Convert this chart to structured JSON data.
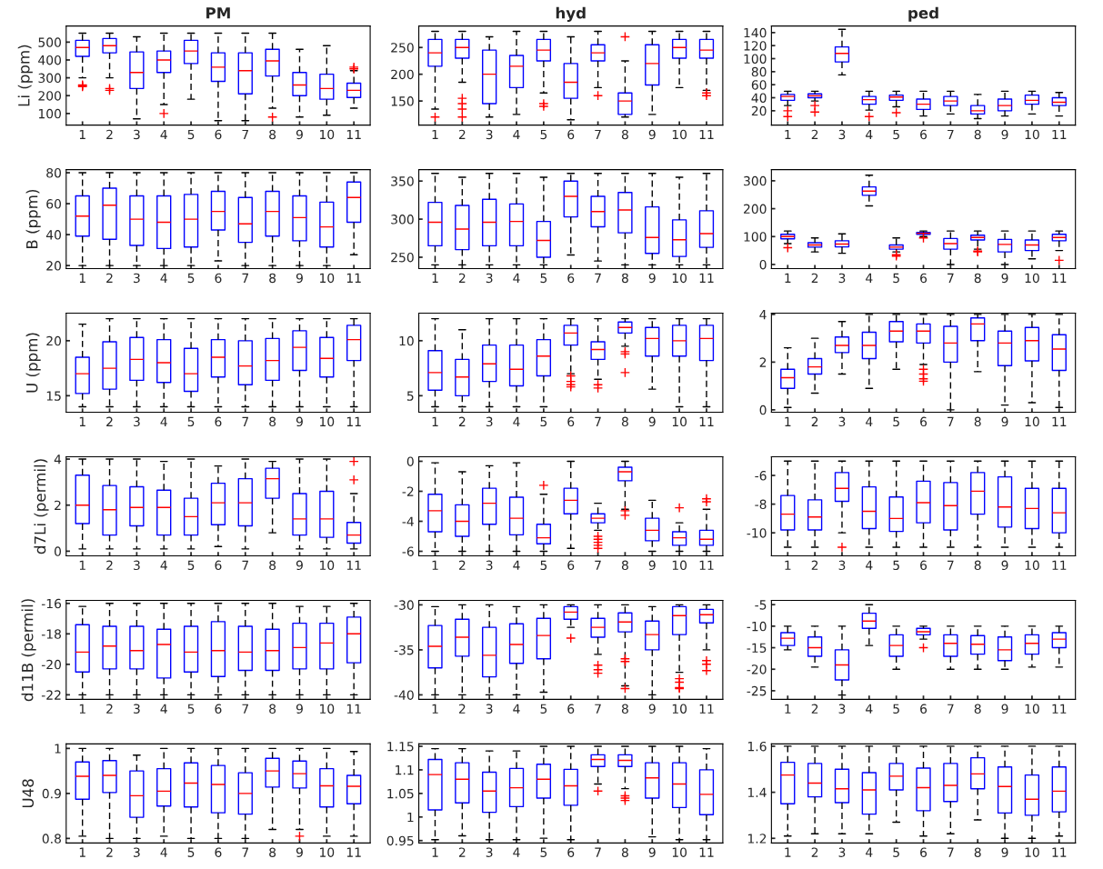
{
  "chart_data": [
    {
      "type": "box",
      "title": "PM",
      "ylabel": "Li (ppm)",
      "color": "#0000ff",
      "marker": "cross",
      "line_style": "dashed",
      "categories": [
        "1",
        "2",
        "3",
        "4",
        "5",
        "6",
        "7",
        "8",
        "9",
        "10",
        "11"
      ],
      "ylim": [
        35,
        590
      ],
      "yticks": [
        100,
        200,
        300,
        400,
        500
      ],
      "boxes": [
        {
          "low": 300,
          "q1": 420,
          "median": 470,
          "q3": 510,
          "high": 550,
          "outliers": [
            255,
            250,
            260
          ]
        },
        {
          "low": 300,
          "q1": 440,
          "median": 480,
          "q3": 520,
          "high": 550,
          "outliers": [
            230,
            240
          ]
        },
        {
          "low": 70,
          "q1": 240,
          "median": 330,
          "q3": 445,
          "high": 530
        },
        {
          "low": 150,
          "q1": 330,
          "median": 400,
          "q3": 450,
          "high": 550,
          "outliers": [
            100
          ]
        },
        {
          "low": 180,
          "q1": 380,
          "median": 450,
          "q3": 510,
          "high": 550
        },
        {
          "low": 60,
          "q1": 280,
          "median": 360,
          "q3": 440,
          "high": 550
        },
        {
          "low": 60,
          "q1": 210,
          "median": 340,
          "q3": 440,
          "high": 550
        },
        {
          "low": 130,
          "q1": 310,
          "median": 395,
          "q3": 460,
          "high": 550,
          "outliers": [
            80
          ]
        },
        {
          "low": 80,
          "q1": 200,
          "median": 260,
          "q3": 330,
          "high": 460
        },
        {
          "low": 90,
          "q1": 180,
          "median": 240,
          "q3": 320,
          "high": 480
        },
        {
          "low": 130,
          "q1": 190,
          "median": 230,
          "q3": 270,
          "high": 340,
          "outliers": [
            360,
            350
          ]
        }
      ]
    },
    {
      "type": "box",
      "title": "hyd",
      "color": "#0000ff",
      "marker": "cross",
      "line_style": "dashed",
      "categories": [
        "1",
        "2",
        "3",
        "4",
        "5",
        "6",
        "7",
        "8",
        "9",
        "10",
        "11"
      ],
      "ylim": [
        105,
        290
      ],
      "yticks": [
        150,
        200,
        250
      ],
      "boxes": [
        {
          "low": 135,
          "q1": 215,
          "median": 240,
          "q3": 265,
          "high": 280,
          "outliers": [
            120
          ]
        },
        {
          "low": 185,
          "q1": 230,
          "median": 250,
          "q3": 265,
          "high": 280,
          "outliers": [
            155,
            145,
            135,
            120
          ]
        },
        {
          "low": 120,
          "q1": 145,
          "median": 200,
          "q3": 245,
          "high": 270
        },
        {
          "low": 125,
          "q1": 175,
          "median": 215,
          "q3": 235,
          "high": 280
        },
        {
          "low": 165,
          "q1": 225,
          "median": 245,
          "q3": 265,
          "high": 280,
          "outliers": [
            145,
            140
          ]
        },
        {
          "low": 115,
          "q1": 155,
          "median": 185,
          "q3": 220,
          "high": 270
        },
        {
          "low": 175,
          "q1": 225,
          "median": 240,
          "q3": 255,
          "high": 280,
          "outliers": [
            160
          ]
        },
        {
          "low": 120,
          "q1": 125,
          "median": 150,
          "q3": 165,
          "high": 225,
          "outliers": [
            270
          ]
        },
        {
          "low": 125,
          "q1": 180,
          "median": 220,
          "q3": 255,
          "high": 280
        },
        {
          "low": 175,
          "q1": 230,
          "median": 250,
          "q3": 265,
          "high": 280
        },
        {
          "low": 170,
          "q1": 230,
          "median": 245,
          "q3": 265,
          "high": 280,
          "outliers": [
            165,
            160
          ]
        }
      ]
    },
    {
      "type": "box",
      "title": "ped",
      "color": "#0000ff",
      "marker": "cross",
      "line_style": "dashed",
      "categories": [
        "1",
        "2",
        "3",
        "4",
        "5",
        "6",
        "7",
        "8",
        "9",
        "10",
        "11"
      ],
      "ylim": [
        -2,
        150
      ],
      "yticks": [
        20,
        40,
        60,
        80,
        100,
        120,
        140
      ],
      "boxes": [
        {
          "low": 28,
          "q1": 36,
          "median": 42,
          "q3": 45,
          "high": 50,
          "outliers": [
            20,
            11
          ]
        },
        {
          "low": 35,
          "q1": 40,
          "median": 43,
          "q3": 46,
          "high": 50,
          "outliers": [
            28,
            18
          ]
        },
        {
          "low": 75,
          "q1": 95,
          "median": 108,
          "q3": 118,
          "high": 145
        },
        {
          "low": 21,
          "q1": 30,
          "median": 37,
          "q3": 42,
          "high": 50,
          "outliers": [
            11
          ]
        },
        {
          "low": 26,
          "q1": 36,
          "median": 41,
          "q3": 44,
          "high": 50,
          "outliers": [
            17
          ]
        },
        {
          "low": 12,
          "q1": 22,
          "median": 30,
          "q3": 38,
          "high": 50
        },
        {
          "low": 15,
          "q1": 28,
          "median": 35,
          "q3": 42,
          "high": 50
        },
        {
          "low": 8,
          "q1": 15,
          "median": 20,
          "q3": 28,
          "high": 45
        },
        {
          "low": 12,
          "q1": 20,
          "median": 28,
          "q3": 38,
          "high": 50
        },
        {
          "low": 15,
          "q1": 30,
          "median": 36,
          "q3": 44,
          "high": 50
        },
        {
          "low": 12,
          "q1": 28,
          "median": 33,
          "q3": 40,
          "high": 48
        }
      ]
    },
    {
      "type": "box",
      "ylabel": "B (ppm)",
      "color": "#0000ff",
      "marker": "cross",
      "line_style": "dashed",
      "categories": [
        "1",
        "2",
        "3",
        "4",
        "5",
        "6",
        "7",
        "8",
        "9",
        "10",
        "11"
      ],
      "ylim": [
        18,
        82
      ],
      "yticks": [
        20,
        40,
        60,
        80
      ],
      "boxes": [
        {
          "low": 20,
          "q1": 39,
          "median": 52,
          "q3": 65,
          "high": 80
        },
        {
          "low": 20,
          "q1": 37,
          "median": 59,
          "q3": 70,
          "high": 80
        },
        {
          "low": 20,
          "q1": 33,
          "median": 50,
          "q3": 65,
          "high": 80
        },
        {
          "low": 20,
          "q1": 31,
          "median": 48,
          "q3": 65,
          "high": 80
        },
        {
          "low": 20,
          "q1": 32,
          "median": 50,
          "q3": 66,
          "high": 80
        },
        {
          "low": 23,
          "q1": 43,
          "median": 55,
          "q3": 68,
          "high": 80
        },
        {
          "low": 20,
          "q1": 35,
          "median": 47,
          "q3": 64,
          "high": 80
        },
        {
          "low": 20,
          "q1": 39,
          "median": 55,
          "q3": 68,
          "high": 80
        },
        {
          "low": 20,
          "q1": 36,
          "median": 51,
          "q3": 65,
          "high": 80
        },
        {
          "low": 20,
          "q1": 32,
          "median": 45,
          "q3": 61,
          "high": 80
        },
        {
          "low": 27,
          "q1": 48,
          "median": 64,
          "q3": 74,
          "high": 80
        }
      ]
    },
    {
      "type": "box",
      "color": "#0000ff",
      "marker": "cross",
      "line_style": "dashed",
      "categories": [
        "1",
        "2",
        "3",
        "4",
        "5",
        "6",
        "7",
        "8",
        "9",
        "10",
        "11"
      ],
      "ylim": [
        235,
        365
      ],
      "yticks": [
        250,
        300,
        350
      ],
      "boxes": [
        {
          "low": 240,
          "q1": 265,
          "median": 296,
          "q3": 322,
          "high": 360
        },
        {
          "low": 240,
          "q1": 260,
          "median": 287,
          "q3": 318,
          "high": 355
        },
        {
          "low": 240,
          "q1": 265,
          "median": 296,
          "q3": 326,
          "high": 360
        },
        {
          "low": 240,
          "q1": 265,
          "median": 297,
          "q3": 320,
          "high": 360
        },
        {
          "low": 240,
          "q1": 250,
          "median": 272,
          "q3": 297,
          "high": 355
        },
        {
          "low": 253,
          "q1": 303,
          "median": 330,
          "q3": 350,
          "high": 360
        },
        {
          "low": 245,
          "q1": 290,
          "median": 310,
          "q3": 330,
          "high": 360
        },
        {
          "low": 240,
          "q1": 282,
          "median": 312,
          "q3": 335,
          "high": 360
        },
        {
          "low": 240,
          "q1": 255,
          "median": 276,
          "q3": 316,
          "high": 360
        },
        {
          "low": 240,
          "q1": 251,
          "median": 273,
          "q3": 299,
          "high": 355
        },
        {
          "low": 240,
          "q1": 263,
          "median": 281,
          "q3": 311,
          "high": 360
        }
      ]
    },
    {
      "type": "box",
      "color": "#0000ff",
      "marker": "cross",
      "line_style": "dashed",
      "categories": [
        "1",
        "2",
        "3",
        "4",
        "5",
        "6",
        "7",
        "8",
        "9",
        "10",
        "11"
      ],
      "ylim": [
        -15,
        340
      ],
      "yticks": [
        0,
        100,
        200,
        300
      ],
      "boxes": [
        {
          "low": 75,
          "q1": 92,
          "median": 100,
          "q3": 108,
          "high": 120,
          "outliers": [
            60
          ]
        },
        {
          "low": 45,
          "q1": 62,
          "median": 70,
          "q3": 78,
          "high": 95
        },
        {
          "low": 40,
          "q1": 63,
          "median": 73,
          "q3": 85,
          "high": 110
        },
        {
          "low": 210,
          "q1": 248,
          "median": 263,
          "q3": 278,
          "high": 320
        },
        {
          "low": 45,
          "q1": 55,
          "median": 62,
          "q3": 70,
          "high": 95,
          "outliers": [
            35,
            30
          ]
        },
        {
          "low": 100,
          "q1": 108,
          "median": 112,
          "q3": 115,
          "high": 120,
          "outliers": [
            95
          ]
        },
        {
          "low": 0,
          "q1": 55,
          "median": 75,
          "q3": 93,
          "high": 120
        },
        {
          "low": 55,
          "q1": 88,
          "median": 97,
          "q3": 105,
          "high": 120,
          "outliers": [
            45,
            48
          ]
        },
        {
          "low": 0,
          "q1": 45,
          "median": 72,
          "q3": 90,
          "high": 120
        },
        {
          "low": 20,
          "q1": 50,
          "median": 70,
          "q3": 88,
          "high": 120
        },
        {
          "low": 50,
          "q1": 85,
          "median": 97,
          "q3": 108,
          "high": 120,
          "outliers": [
            15
          ]
        }
      ]
    },
    {
      "type": "box",
      "ylabel": "U (ppm)",
      "color": "#0000ff",
      "marker": "cross",
      "line_style": "dashed",
      "categories": [
        "1",
        "2",
        "3",
        "4",
        "5",
        "6",
        "7",
        "8",
        "9",
        "10",
        "11"
      ],
      "ylim": [
        13.5,
        22.5
      ],
      "yticks": [
        15,
        20
      ],
      "boxes": [
        {
          "low": 14,
          "q1": 15.2,
          "median": 17,
          "q3": 18.5,
          "high": 21.5
        },
        {
          "low": 14,
          "q1": 15.6,
          "median": 17.5,
          "q3": 19.9,
          "high": 22
        },
        {
          "low": 14,
          "q1": 16.4,
          "median": 18.3,
          "q3": 20.3,
          "high": 22
        },
        {
          "low": 14,
          "q1": 16.2,
          "median": 18,
          "q3": 20.1,
          "high": 22
        },
        {
          "low": 14,
          "q1": 15.4,
          "median": 17,
          "q3": 19.3,
          "high": 22
        },
        {
          "low": 14,
          "q1": 16.7,
          "median": 18.5,
          "q3": 20.1,
          "high": 22
        },
        {
          "low": 14,
          "q1": 16,
          "median": 17.7,
          "q3": 20,
          "high": 22
        },
        {
          "low": 14,
          "q1": 16.4,
          "median": 18.2,
          "q3": 20.2,
          "high": 22
        },
        {
          "low": 14,
          "q1": 17.3,
          "median": 19.4,
          "q3": 20.9,
          "high": 22
        },
        {
          "low": 14,
          "q1": 16.7,
          "median": 18.4,
          "q3": 20.3,
          "high": 22
        },
        {
          "low": 14,
          "q1": 18.2,
          "median": 20.1,
          "q3": 21.4,
          "high": 22
        }
      ]
    },
    {
      "type": "box",
      "color": "#0000ff",
      "marker": "cross",
      "line_style": "dashed",
      "categories": [
        "1",
        "2",
        "3",
        "4",
        "5",
        "6",
        "7",
        "8",
        "9",
        "10",
        "11"
      ],
      "ylim": [
        3.5,
        12.5
      ],
      "yticks": [
        5,
        10
      ],
      "boxes": [
        {
          "low": 4,
          "q1": 5.5,
          "median": 7.1,
          "q3": 9.1,
          "high": 12
        },
        {
          "low": 4,
          "q1": 5,
          "median": 6.7,
          "q3": 8.3,
          "high": 11
        },
        {
          "low": 4,
          "q1": 6.3,
          "median": 7.9,
          "q3": 9.6,
          "high": 12
        },
        {
          "low": 4,
          "q1": 5.9,
          "median": 7.4,
          "q3": 9.6,
          "high": 12
        },
        {
          "low": 4,
          "q1": 6.8,
          "median": 8.6,
          "q3": 10.1,
          "high": 12
        },
        {
          "low": 7,
          "q1": 9.6,
          "median": 10.7,
          "q3": 11.4,
          "high": 12,
          "outliers": [
            6.8,
            6.3,
            6,
            5.8
          ]
        },
        {
          "low": 6.5,
          "q1": 8.3,
          "median": 9.2,
          "q3": 9.9,
          "high": 12,
          "outliers": [
            6,
            5.7
          ]
        },
        {
          "low": 9.5,
          "q1": 10.7,
          "median": 11.2,
          "q3": 11.7,
          "high": 12,
          "outliers": [
            9,
            8.8,
            7.1
          ]
        },
        {
          "low": 5.6,
          "q1": 8.6,
          "median": 10.2,
          "q3": 11.2,
          "high": 12
        },
        {
          "low": 4,
          "q1": 8.6,
          "median": 10,
          "q3": 11.4,
          "high": 12
        },
        {
          "low": 4,
          "q1": 8.2,
          "median": 10.2,
          "q3": 11.4,
          "high": 12
        }
      ]
    },
    {
      "type": "box",
      "color": "#0000ff",
      "marker": "cross",
      "line_style": "dashed",
      "categories": [
        "1",
        "2",
        "3",
        "4",
        "5",
        "6",
        "7",
        "8",
        "9",
        "10",
        "11"
      ],
      "ylim": [
        -0.1,
        4.05
      ],
      "yticks": [
        0,
        2,
        4
      ],
      "boxes": [
        {
          "low": 0.1,
          "q1": 0.9,
          "median": 1.35,
          "q3": 1.7,
          "high": 2.6
        },
        {
          "low": 0.7,
          "q1": 1.5,
          "median": 1.8,
          "q3": 2.15,
          "high": 3
        },
        {
          "low": 1.5,
          "q1": 2.4,
          "median": 2.7,
          "q3": 3.05,
          "high": 3.7
        },
        {
          "low": 0.9,
          "q1": 2.15,
          "median": 2.7,
          "q3": 3.25,
          "high": 4
        },
        {
          "low": 1.7,
          "q1": 2.85,
          "median": 3.3,
          "q3": 3.7,
          "high": 4
        },
        {
          "low": 1.9,
          "q1": 2.8,
          "median": 3.3,
          "q3": 3.6,
          "high": 4,
          "outliers": [
            1.7,
            1.5,
            1.3,
            1.2
          ]
        },
        {
          "low": 0,
          "q1": 2,
          "median": 2.8,
          "q3": 3.5,
          "high": 4
        },
        {
          "low": 1.6,
          "q1": 2.9,
          "median": 3.6,
          "q3": 3.85,
          "high": 4
        },
        {
          "low": 0.2,
          "q1": 1.85,
          "median": 2.8,
          "q3": 3.3,
          "high": 4
        },
        {
          "low": 0.3,
          "q1": 2.05,
          "median": 2.9,
          "q3": 3.45,
          "high": 4
        },
        {
          "low": 0.1,
          "q1": 1.65,
          "median": 2.55,
          "q3": 3.15,
          "high": 4
        }
      ]
    },
    {
      "type": "box",
      "ylabel": "d7Li (permil)",
      "color": "#0000ff",
      "marker": "cross",
      "line_style": "dashed",
      "categories": [
        "1",
        "2",
        "3",
        "4",
        "5",
        "6",
        "7",
        "8",
        "9",
        "10",
        "11"
      ],
      "ylim": [
        -0.2,
        4.1
      ],
      "yticks": [
        0,
        2,
        4
      ],
      "boxes": [
        {
          "low": 0.1,
          "q1": 1.2,
          "median": 2,
          "q3": 3.3,
          "high": 4
        },
        {
          "low": 0.1,
          "q1": 0.7,
          "median": 1.8,
          "q3": 2.85,
          "high": 4
        },
        {
          "low": 0.1,
          "q1": 1.1,
          "median": 1.9,
          "q3": 2.8,
          "high": 4
        },
        {
          "low": 0.1,
          "q1": 0.7,
          "median": 1.9,
          "q3": 2.65,
          "high": 3.9
        },
        {
          "low": 0.1,
          "q1": 0.7,
          "median": 1.5,
          "q3": 2.3,
          "high": 4
        },
        {
          "low": 0.2,
          "q1": 1.15,
          "median": 2.1,
          "q3": 2.95,
          "high": 3.7
        },
        {
          "low": 0.1,
          "q1": 1.1,
          "median": 2.1,
          "q3": 3.15,
          "high": 4
        },
        {
          "low": 0.8,
          "q1": 2.3,
          "median": 3.15,
          "q3": 3.6,
          "high": 3.9
        },
        {
          "low": 0.1,
          "q1": 0.7,
          "median": 1.4,
          "q3": 2.5,
          "high": 4
        },
        {
          "low": 0.1,
          "q1": 0.6,
          "median": 1.4,
          "q3": 2.6,
          "high": 4
        },
        {
          "low": 0.1,
          "q1": 0.35,
          "median": 0.7,
          "q3": 1.25,
          "high": 2.5,
          "outliers": [
            3.9,
            3.1
          ]
        }
      ]
    },
    {
      "type": "box",
      "color": "#0000ff",
      "marker": "cross",
      "line_style": "dashed",
      "categories": [
        "1",
        "2",
        "3",
        "4",
        "5",
        "6",
        "7",
        "8",
        "9",
        "10",
        "11"
      ],
      "ylim": [
        -6.3,
        0.3
      ],
      "yticks": [
        -6,
        -4,
        -2,
        0
      ],
      "boxes": [
        {
          "low": -6,
          "q1": -4.7,
          "median": -3.3,
          "q3": -2.2,
          "high": -0.1
        },
        {
          "low": -6,
          "q1": -5,
          "median": -4,
          "q3": -2.9,
          "high": -0.7
        },
        {
          "low": -6,
          "q1": -4.2,
          "median": -2.8,
          "q3": -1.8,
          "high": -0.3
        },
        {
          "low": -6,
          "q1": -4.9,
          "median": -3.8,
          "q3": -2.4,
          "high": -0.1
        },
        {
          "low": -6,
          "q1": -5.5,
          "median": -5.1,
          "q3": -4.2,
          "high": -2.2,
          "outliers": [
            -1.6
          ]
        },
        {
          "low": -5.8,
          "q1": -3.5,
          "median": -2.6,
          "q3": -1.8,
          "high": 0
        },
        {
          "low": -4.6,
          "q1": -4.1,
          "median": -3.8,
          "q3": -3.5,
          "high": -2.8,
          "outliers": [
            -5,
            -5.2,
            -5.4,
            -5.6,
            -5.8
          ]
        },
        {
          "low": -3.2,
          "q1": -1.3,
          "median": -0.7,
          "q3": -0.4,
          "high": 0,
          "outliers": [
            -3.3,
            -3.6
          ]
        },
        {
          "low": -6,
          "q1": -5.3,
          "median": -4.6,
          "q3": -3.8,
          "high": -2.6
        },
        {
          "low": -6,
          "q1": -5.6,
          "median": -5.1,
          "q3": -4.7,
          "high": -4.1,
          "outliers": [
            -3.1
          ]
        },
        {
          "low": -6,
          "q1": -5.6,
          "median": -5.2,
          "q3": -4.6,
          "high": -3.2,
          "outliers": [
            -2.7,
            -2.5
          ]
        }
      ]
    },
    {
      "type": "box",
      "color": "#0000ff",
      "marker": "cross",
      "line_style": "dashed",
      "categories": [
        "1",
        "2",
        "3",
        "4",
        "5",
        "6",
        "7",
        "8",
        "9",
        "10",
        "11"
      ],
      "ylim": [
        -11.6,
        -4.7
      ],
      "yticks": [
        -10,
        -8,
        -6
      ],
      "boxes": [
        {
          "low": -11,
          "q1": -9.8,
          "median": -8.7,
          "q3": -7.4,
          "high": -5
        },
        {
          "low": -11,
          "q1": -9.8,
          "median": -8.9,
          "q3": -7.7,
          "high": -5
        },
        {
          "low": -10,
          "q1": -7.8,
          "median": -6.9,
          "q3": -5.8,
          "high": -5,
          "outliers": [
            -11
          ]
        },
        {
          "low": -11,
          "q1": -9.7,
          "median": -8.5,
          "q3": -6.8,
          "high": -5
        },
        {
          "low": -11,
          "q1": -9.9,
          "median": -9,
          "q3": -7.5,
          "high": -5
        },
        {
          "low": -11,
          "q1": -9.3,
          "median": -7.9,
          "q3": -6.4,
          "high": -5
        },
        {
          "low": -11,
          "q1": -9.8,
          "median": -8.1,
          "q3": -6.5,
          "high": -5
        },
        {
          "low": -11,
          "q1": -8.7,
          "median": -7.1,
          "q3": -5.8,
          "high": -5
        },
        {
          "low": -11,
          "q1": -9.6,
          "median": -8.2,
          "q3": -6.1,
          "high": -5
        },
        {
          "low": -11,
          "q1": -9.7,
          "median": -8.3,
          "q3": -6.9,
          "high": -5
        },
        {
          "low": -11,
          "q1": -10,
          "median": -8.6,
          "q3": -6.9,
          "high": -5
        }
      ]
    },
    {
      "type": "box",
      "ylabel": "d11B (permil)",
      "color": "#0000ff",
      "marker": "cross",
      "line_style": "dashed",
      "categories": [
        "1",
        "2",
        "3",
        "4",
        "5",
        "6",
        "7",
        "8",
        "9",
        "10",
        "11"
      ],
      "ylim": [
        -22.3,
        -15.8
      ],
      "yticks": [
        -22,
        -20,
        -18,
        -16
      ],
      "boxes": [
        {
          "low": -22,
          "q1": -20.5,
          "median": -19.2,
          "q3": -17.4,
          "high": -16.2
        },
        {
          "low": -22,
          "q1": -20.3,
          "median": -18.8,
          "q3": -17.5,
          "high": -16
        },
        {
          "low": -22,
          "q1": -20.3,
          "median": -19.1,
          "q3": -17.5,
          "high": -16
        },
        {
          "low": -22,
          "q1": -20.9,
          "median": -18.7,
          "q3": -17.7,
          "high": -16
        },
        {
          "low": -22,
          "q1": -20.5,
          "median": -19.2,
          "q3": -17.5,
          "high": -16
        },
        {
          "low": -22,
          "q1": -20.8,
          "median": -19.1,
          "q3": -17.2,
          "high": -16
        },
        {
          "low": -22,
          "q1": -20.4,
          "median": -19.2,
          "q3": -17.5,
          "high": -16
        },
        {
          "low": -22,
          "q1": -20.4,
          "median": -19.1,
          "q3": -17.7,
          "high": -16
        },
        {
          "low": -22,
          "q1": -20.3,
          "median": -18.9,
          "q3": -17.3,
          "high": -16.2
        },
        {
          "low": -22,
          "q1": -20.3,
          "median": -18.6,
          "q3": -17.3,
          "high": -16.2
        },
        {
          "low": -22,
          "q1": -19.9,
          "median": -18,
          "q3": -16.9,
          "high": -16
        }
      ]
    },
    {
      "type": "box",
      "color": "#0000ff",
      "marker": "cross",
      "line_style": "dashed",
      "categories": [
        "1",
        "2",
        "3",
        "4",
        "5",
        "6",
        "7",
        "8",
        "9",
        "10",
        "11"
      ],
      "ylim": [
        -40.5,
        -29.5
      ],
      "yticks": [
        -40,
        -35,
        -30
      ],
      "boxes": [
        {
          "low": -40,
          "q1": -37,
          "median": -34.6,
          "q3": -32.3,
          "high": -30.2
        },
        {
          "low": -40,
          "q1": -35.7,
          "median": -33.6,
          "q3": -31.6,
          "high": -30
        },
        {
          "low": -40,
          "q1": -38,
          "median": -35.6,
          "q3": -32.5,
          "high": -30
        },
        {
          "low": -40,
          "q1": -36.5,
          "median": -34.4,
          "q3": -32.1,
          "high": -30.2
        },
        {
          "low": -39.7,
          "q1": -36,
          "median": -33.4,
          "q3": -31.5,
          "high": -30
        },
        {
          "low": -32.5,
          "q1": -31.6,
          "median": -30.8,
          "q3": -30.2,
          "high": -30,
          "outliers": [
            -33.7
          ]
        },
        {
          "low": -35.5,
          "q1": -33.6,
          "median": -32.5,
          "q3": -31.5,
          "high": -30,
          "outliers": [
            -36.7,
            -37.2,
            -37.6
          ]
        },
        {
          "low": -39,
          "q1": -33,
          "median": -31.9,
          "q3": -30.9,
          "high": -30,
          "outliers": [
            -36,
            -36.3,
            -39.3
          ]
        },
        {
          "low": -40,
          "q1": -35,
          "median": -33.3,
          "q3": -31.8,
          "high": -30.2
        },
        {
          "low": -37.5,
          "q1": -33.3,
          "median": -31.2,
          "q3": -30.2,
          "high": -30,
          "outliers": [
            -38.2,
            -38.6,
            -39.2,
            -39.3
          ]
        },
        {
          "low": -35,
          "q1": -32,
          "median": -31.1,
          "q3": -30.5,
          "high": -30,
          "outliers": [
            -36.2,
            -36.6,
            -37.3
          ]
        }
      ]
    },
    {
      "type": "box",
      "color": "#0000ff",
      "marker": "cross",
      "line_style": "dashed",
      "categories": [
        "1",
        "2",
        "3",
        "4",
        "5",
        "6",
        "7",
        "8",
        "9",
        "10",
        "11"
      ],
      "ylim": [
        -27,
        -4
      ],
      "yticks": [
        -25,
        -20,
        -15,
        -10,
        -5
      ],
      "boxes": [
        {
          "low": -15.5,
          "q1": -14.5,
          "median": -12.8,
          "q3": -11.5,
          "high": -10
        },
        {
          "low": -19.5,
          "q1": -17,
          "median": -15,
          "q3": -12.5,
          "high": -10
        },
        {
          "low": -26,
          "q1": -22.5,
          "median": -19,
          "q3": -15.5,
          "high": -10
        },
        {
          "low": -14.5,
          "q1": -10.5,
          "median": -8.8,
          "q3": -7,
          "high": -5
        },
        {
          "low": -20,
          "q1": -17,
          "median": -14.5,
          "q3": -12,
          "high": -10
        },
        {
          "low": -13,
          "q1": -12,
          "median": -11.3,
          "q3": -10.5,
          "high": -10,
          "outliers": [
            -15
          ]
        },
        {
          "low": -20,
          "q1": -17,
          "median": -14,
          "q3": -12,
          "high": -10
        },
        {
          "low": -20,
          "q1": -16.5,
          "median": -14.2,
          "q3": -12.2,
          "high": -10
        },
        {
          "low": -20,
          "q1": -18,
          "median": -15.5,
          "q3": -12.5,
          "high": -10
        },
        {
          "low": -19.5,
          "q1": -16.5,
          "median": -14,
          "q3": -12,
          "high": -10
        },
        {
          "low": -19.5,
          "q1": -15,
          "median": -13,
          "q3": -11.5,
          "high": -10
        }
      ]
    },
    {
      "type": "box",
      "ylabel": "U48",
      "color": "#0000ff",
      "marker": "cross",
      "line_style": "dashed",
      "categories": [
        "1",
        "2",
        "3",
        "4",
        "5",
        "6",
        "7",
        "8",
        "9",
        "10",
        "11"
      ],
      "ylim": [
        0.79,
        1.01
      ],
      "yticks": [
        0.8,
        0.9,
        1
      ],
      "boxes": [
        {
          "low": 0.805,
          "q1": 0.887,
          "median": 0.938,
          "q3": 0.97,
          "high": 1
        },
        {
          "low": 0.8,
          "q1": 0.902,
          "median": 0.94,
          "q3": 0.973,
          "high": 1
        },
        {
          "low": 0.8,
          "q1": 0.847,
          "median": 0.895,
          "q3": 0.95,
          "high": 0.985
        },
        {
          "low": 0.805,
          "q1": 0.872,
          "median": 0.905,
          "q3": 0.955,
          "high": 1
        },
        {
          "low": 0.8,
          "q1": 0.87,
          "median": 0.923,
          "q3": 0.968,
          "high": 1
        },
        {
          "low": 0.8,
          "q1": 0.857,
          "median": 0.92,
          "q3": 0.962,
          "high": 1
        },
        {
          "low": 0.8,
          "q1": 0.854,
          "median": 0.9,
          "q3": 0.946,
          "high": 1
        },
        {
          "low": 0.82,
          "q1": 0.914,
          "median": 0.95,
          "q3": 0.978,
          "high": 1
        },
        {
          "low": 0.82,
          "q1": 0.912,
          "median": 0.944,
          "q3": 0.972,
          "high": 1,
          "outliers": [
            0.805
          ]
        },
        {
          "low": 0.805,
          "q1": 0.87,
          "median": 0.917,
          "q3": 0.955,
          "high": 1
        },
        {
          "low": 0.805,
          "q1": 0.877,
          "median": 0.916,
          "q3": 0.94,
          "high": 0.993
        }
      ]
    },
    {
      "type": "box",
      "color": "#0000ff",
      "marker": "cross",
      "line_style": "dashed",
      "categories": [
        "1",
        "2",
        "3",
        "4",
        "5",
        "6",
        "7",
        "8",
        "9",
        "10",
        "11"
      ],
      "ylim": [
        0.945,
        1.155
      ],
      "yticks": [
        0.95,
        1,
        1.05,
        1.1,
        1.15
      ],
      "boxes": [
        {
          "low": 0.952,
          "q1": 1.015,
          "median": 1.09,
          "q3": 1.122,
          "high": 1.145
        },
        {
          "low": 0.96,
          "q1": 1.03,
          "median": 1.08,
          "q3": 1.115,
          "high": 1.145
        },
        {
          "low": 0.952,
          "q1": 1.01,
          "median": 1.055,
          "q3": 1.095,
          "high": 1.14
        },
        {
          "low": 0.952,
          "q1": 1.022,
          "median": 1.062,
          "q3": 1.103,
          "high": 1.14
        },
        {
          "low": 0.955,
          "q1": 1.04,
          "median": 1.08,
          "q3": 1.112,
          "high": 1.15
        },
        {
          "low": 0.952,
          "q1": 1.025,
          "median": 1.066,
          "q3": 1.101,
          "high": 1.15
        },
        {
          "low": 1.07,
          "q1": 1.107,
          "median": 1.122,
          "q3": 1.132,
          "high": 1.15,
          "outliers": [
            1.055
          ]
        },
        {
          "low": 1.06,
          "q1": 1.107,
          "median": 1.12,
          "q3": 1.132,
          "high": 1.15,
          "outliers": [
            1.045,
            1.04,
            1.035
          ]
        },
        {
          "low": 0.958,
          "q1": 1.04,
          "median": 1.083,
          "q3": 1.115,
          "high": 1.15
        },
        {
          "low": 0.952,
          "q1": 1.02,
          "median": 1.07,
          "q3": 1.115,
          "high": 1.15
        },
        {
          "low": 0.952,
          "q1": 1.005,
          "median": 1.048,
          "q3": 1.1,
          "high": 1.145
        }
      ]
    },
    {
      "type": "box",
      "color": "#0000ff",
      "marker": "cross",
      "line_style": "dashed",
      "categories": [
        "1",
        "2",
        "3",
        "4",
        "5",
        "6",
        "7",
        "8",
        "9",
        "10",
        "11"
      ],
      "ylim": [
        1.18,
        1.61
      ],
      "yticks": [
        1.2,
        1.4,
        1.6
      ],
      "boxes": [
        {
          "low": 1.21,
          "q1": 1.35,
          "median": 1.475,
          "q3": 1.53,
          "high": 1.6
        },
        {
          "low": 1.22,
          "q1": 1.38,
          "median": 1.44,
          "q3": 1.525,
          "high": 1.6
        },
        {
          "low": 1.22,
          "q1": 1.355,
          "median": 1.415,
          "q3": 1.5,
          "high": 1.6
        },
        {
          "low": 1.22,
          "q1": 1.305,
          "median": 1.41,
          "q3": 1.485,
          "high": 1.6
        },
        {
          "low": 1.27,
          "q1": 1.41,
          "median": 1.47,
          "q3": 1.525,
          "high": 1.6
        },
        {
          "low": 1.21,
          "q1": 1.32,
          "median": 1.42,
          "q3": 1.505,
          "high": 1.6
        },
        {
          "low": 1.22,
          "q1": 1.36,
          "median": 1.43,
          "q3": 1.525,
          "high": 1.6
        },
        {
          "low": 1.28,
          "q1": 1.415,
          "median": 1.48,
          "q3": 1.55,
          "high": 1.6
        },
        {
          "low": 1.2,
          "q1": 1.31,
          "median": 1.425,
          "q3": 1.51,
          "high": 1.6
        },
        {
          "low": 1.2,
          "q1": 1.3,
          "median": 1.37,
          "q3": 1.475,
          "high": 1.6
        },
        {
          "low": 1.21,
          "q1": 1.315,
          "median": 1.405,
          "q3": 1.51,
          "high": 1.6
        }
      ]
    }
  ]
}
